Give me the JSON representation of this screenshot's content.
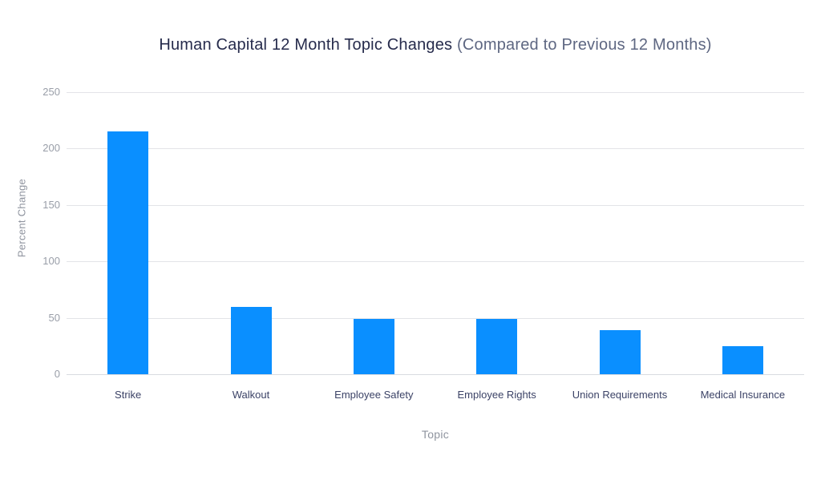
{
  "title": {
    "main": "Human Capital 12 Month Topic Changes",
    "sub": " (Compared to Previous 12 Months)"
  },
  "chart_data": {
    "type": "bar",
    "title": "Human Capital 12 Month Topic Changes (Compared to Previous 12 Months)",
    "categories": [
      "Strike",
      "Walkout",
      "Employee Safety",
      "Employee Rights",
      "Union Requirements",
      "Medical Insurance"
    ],
    "values": [
      215,
      60,
      49,
      49,
      39,
      25
    ],
    "xlabel": "Topic",
    "ylabel": "Percent Change",
    "ylim": [
      0,
      250
    ],
    "yticks": [
      0,
      50,
      100,
      150,
      200,
      250
    ],
    "grid": true,
    "legend": false,
    "bar_color": "#0a8fff"
  },
  "colors": {
    "bar": "#0a8fff",
    "title": "#262b4c",
    "subtitle": "#5e6782",
    "tick_text": "#999ea8",
    "axis_label_text": "#8f949f",
    "category_text": "#3b4266",
    "gridline": "#e3e4e8",
    "background": "#ffffff"
  }
}
